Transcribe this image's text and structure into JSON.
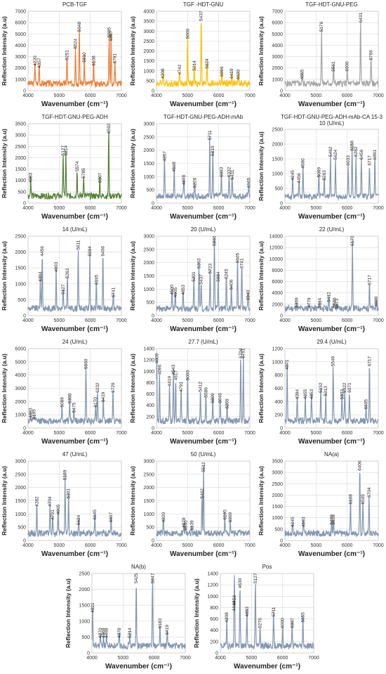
{
  "chart_data": [
    {
      "type": "line",
      "title": "PCB-TGF",
      "color": "#ED7D31",
      "xlim": [
        4000,
        7000
      ],
      "ylim": [
        0,
        7000
      ],
      "ystep": 1000,
      "xtick_step": 1000,
      "xlabel": "Wavenumber (cm⁻¹)",
      "ylabel": "Reflection Intensity (a.u)",
      "peaks": [
        [
          4220,
          2000
        ],
        [
          4357,
          1800
        ],
        [
          5251,
          2500
        ],
        [
          5524,
          3500
        ],
        [
          5648,
          5000
        ],
        [
          5810,
          2300
        ],
        [
          6108,
          2000
        ],
        [
          6605,
          4500
        ],
        [
          6667,
          4200
        ],
        [
          6791,
          2200
        ]
      ],
      "labels": [
        "4220",
        "4357",
        "5251",
        "5524",
        "5648",
        "5810",
        "6108",
        "6605",
        "6667",
        "6791"
      ]
    },
    {
      "type": "line",
      "title": "TGF -HDT-GNU",
      "color": "#FFC000",
      "xlim": [
        4000,
        7000
      ],
      "ylim": [
        0,
        4000
      ],
      "ystep": 500,
      "xtick_step": 1000,
      "xlabel": "Wavenumber (cm⁻¹)",
      "ylabel": "Reflection Intensity (a.u)",
      "peaks": [
        [
          4208,
          500
        ],
        [
          4742,
          700
        ],
        [
          5000,
          2500
        ],
        [
          5214,
          900
        ],
        [
          5437,
          3600
        ],
        [
          5624,
          1000
        ],
        [
          6096,
          600
        ],
        [
          6419,
          500
        ],
        [
          6630,
          450
        ]
      ],
      "labels": [
        "4208",
        "4742",
        "5000",
        "5214",
        "5437",
        "5624",
        "6096",
        "6419",
        "6630"
      ]
    },
    {
      "type": "line",
      "title": "TGF-HDT-GNU-PEG",
      "color": "#A5A5A5",
      "xlim": [
        4000,
        7000
      ],
      "ylim": [
        0,
        7000
      ],
      "ystep": 1000,
      "xtick_step": 1000,
      "xlabel": "Wavenumber (cm⁻¹)",
      "ylabel": "Reflection Intensity (a.u)",
      "peaks": [
        [
          4555,
          800
        ],
        [
          5176,
          5000
        ],
        [
          5561,
          1500
        ],
        [
          6000,
          1500
        ],
        [
          6431,
          5800
        ],
        [
          6766,
          2500
        ]
      ],
      "labels": [
        "4555",
        "5176",
        "5561",
        "6000",
        "6431",
        "6766"
      ]
    },
    {
      "type": "line",
      "title": "TGF-HDT-GNU-PEG-ADH",
      "color": "#548235",
      "xlim": [
        4000,
        7000
      ],
      "ylim": [
        0,
        3500
      ],
      "ystep": 500,
      "xtick_step": 1000,
      "xlabel": "Wavenumber (cm⁻¹)",
      "ylabel": "Reflection Intensity (a.u)",
      "peaks": [
        [
          4083,
          800
        ],
        [
          5127,
          2000
        ],
        [
          5214,
          2000
        ],
        [
          5574,
          1300
        ],
        [
          5785,
          1000
        ],
        [
          6307,
          800
        ],
        [
          6592,
          3000
        ]
      ],
      "labels": [
        "4083",
        "5127",
        "5214",
        "5574",
        "5785",
        "6307",
        "6592"
      ]
    },
    {
      "type": "line",
      "title": "TGF-HDT-GNU-PEG-ADH-mAb",
      "color": "#8497B0",
      "xlim": [
        4000,
        7000
      ],
      "ylim": [
        0,
        3000
      ],
      "ystep": 500,
      "xtick_step": 1000,
      "xlabel": "Wavenumber (cm⁻¹)",
      "ylabel": "Reflection Intensity (a.u)",
      "peaks": [
        [
          4257,
          1500
        ],
        [
          4568,
          1100
        ],
        [
          4878,
          600
        ],
        [
          5226,
          500
        ],
        [
          5711,
          2300
        ],
        [
          5810,
          1700
        ],
        [
          6083,
          900
        ],
        [
          6332,
          900
        ],
        [
          6431,
          800
        ],
        [
          6965,
          500
        ]
      ],
      "labels": [
        "4257",
        "4568",
        "4878",
        "5226",
        "5711",
        "5810",
        "6083",
        "6332",
        "6431",
        "6965"
      ]
    },
    {
      "type": "line",
      "title": "TGF-HDT-GNU-PEG-ADH-mAb-CA 15-3",
      "subtitle": "10 (U/mL)",
      "color": "#8497B0",
      "xlim": [
        4000,
        7000
      ],
      "ylim": [
        0,
        2500
      ],
      "ystep": 500,
      "xtick_step": 1000,
      "xlabel": "Wavenumber (cm⁻¹)",
      "ylabel": "Reflection Intensity (a.u)",
      "peaks": [
        [
          4245,
          700
        ],
        [
          4456,
          600
        ],
        [
          4580,
          1100
        ],
        [
          5089,
          800
        ],
        [
          5263,
          700
        ],
        [
          5462,
          1500
        ],
        [
          5624,
          1400
        ],
        [
          6033,
          1200
        ],
        [
          6158,
          1700
        ],
        [
          6282,
          1500
        ],
        [
          6456,
          1400
        ],
        [
          6717,
          1200
        ],
        [
          6891,
          1400
        ]
      ],
      "labels": [
        "4245",
        "4456",
        "4580",
        "5089",
        "5263",
        "5462",
        "5624",
        "6033",
        "6158",
        "6282",
        "6456",
        "6717",
        "6891"
      ]
    },
    {
      "type": "line",
      "title": "14 (U/mL)",
      "color": "#8497B0",
      "xlim": [
        4000,
        7000
      ],
      "ylim": [
        0,
        2500
      ],
      "ystep": 500,
      "xtick_step": 1000,
      "xlabel": "Wavenumber (cm⁻¹)",
      "ylabel": "Reflection Intensity (a.u)",
      "peaks": [
        [
          4394,
          1000
        ],
        [
          4456,
          1800
        ],
        [
          4903,
          1300
        ],
        [
          5127,
          600
        ],
        [
          5263,
          1100
        ],
        [
          5611,
          2000
        ],
        [
          5984,
          1800
        ],
        [
          6195,
          900
        ],
        [
          6406,
          1800
        ],
        [
          6741,
          500
        ]
      ],
      "labels": [
        "4394",
        "4456",
        "4903",
        "5127",
        "5263",
        "5611",
        "5984",
        "6195",
        "6406",
        "6741"
      ]
    },
    {
      "type": "line",
      "title": "20 (U/mL)",
      "color": "#8497B0",
      "xlim": [
        4000,
        7000
      ],
      "ylim": [
        0,
        3000
      ],
      "ystep": 500,
      "xtick_step": 1000,
      "xlabel": "Wavenumber (cm⁻¹)",
      "ylabel": "Reflection Intensity (a.u)",
      "peaks": [
        [
          4500,
          700
        ],
        [
          4605,
          600
        ],
        [
          4853,
          700
        ],
        [
          5201,
          1200
        ],
        [
          5363,
          1700
        ],
        [
          5437,
          1100
        ],
        [
          5723,
          1500
        ],
        [
          5860,
          2700
        ],
        [
          5984,
          1200
        ],
        [
          6245,
          1300
        ],
        [
          6406,
          900
        ],
        [
          6605,
          1900
        ],
        [
          6741,
          1700
        ],
        [
          6940,
          500
        ]
      ],
      "labels": [
        "4500",
        "4605",
        "4853",
        "5201",
        "5363",
        "5437",
        "5723",
        "5860",
        "5984",
        "6245",
        "6406",
        "6605",
        "6741",
        "6940"
      ]
    },
    {
      "type": "line",
      "title": "22 (U/mL)",
      "color": "#8497B0",
      "xlim": [
        4000,
        7000
      ],
      "ylim": [
        0,
        14000
      ],
      "ystep": 2000,
      "xtick_step": 1000,
      "xlabel": "Wavenumber (cm⁻¹)",
      "ylabel": "Reflection Intensity (a.u)",
      "peaks": [
        [
          4369,
          1000
        ],
        [
          4779,
          1000
        ],
        [
          5114,
          1000
        ],
        [
          5412,
          2000
        ],
        [
          5586,
          1000
        ],
        [
          5673,
          800
        ],
        [
          6170,
          12000
        ],
        [
          6717,
          5000
        ],
        [
          6928,
          1200
        ]
      ],
      "labels": [
        "4369",
        "4779",
        "5114",
        "5412",
        "5586",
        "5673",
        "6170",
        "6717",
        "6928"
      ]
    },
    {
      "type": "line",
      "title": "24 (U/mL)",
      "color": "#8497B0",
      "xlim": [
        4000,
        7000
      ],
      "ylim": [
        0,
        6000
      ],
      "ystep": 1000,
      "xtick_step": 1000,
      "xlabel": "Wavenumber (cm⁻¹)",
      "ylabel": "Reflection Intensity (a.u)",
      "peaks": [
        [
          4083,
          600
        ],
        [
          4195,
          500
        ],
        [
          5089,
          1400
        ],
        [
          5338,
          1700
        ],
        [
          5475,
          1000
        ],
        [
          5860,
          4300
        ],
        [
          6170,
          1400
        ],
        [
          6232,
          2500
        ],
        [
          6419,
          1800
        ],
        [
          6729,
          2500
        ]
      ],
      "labels": [
        "4083",
        "4195",
        "5089",
        "5338",
        "5475",
        "5860",
        "6170",
        "6232",
        "6419",
        "6729"
      ]
    },
    {
      "type": "line",
      "title": "27.7 (U/mL)",
      "color": "#8497B0",
      "xlim": [
        4000,
        7000
      ],
      "ylim": [
        0,
        1400
      ],
      "ystep": 200,
      "xtick_step": 1000,
      "xlabel": "Wavenumber (cm⁻¹)",
      "ylabel": "Reflection Intensity (a.u)",
      "peaks": [
        [
          4009,
          1100
        ],
        [
          4096,
          900
        ],
        [
          4419,
          700
        ],
        [
          4543,
          900
        ],
        [
          4617,
          800
        ],
        [
          4791,
          600
        ],
        [
          5000,
          800
        ],
        [
          5412,
          600
        ],
        [
          5586,
          500
        ],
        [
          5809,
          400
        ],
        [
          6046,
          400
        ],
        [
          6269,
          300
        ],
        [
          6704,
          1200
        ],
        [
          6791,
          1200
        ]
      ],
      "labels": [
        "4009",
        "4096",
        "4419",
        "4543",
        "4617",
        "4791",
        "5000",
        "5412",
        "5586",
        "5809",
        "6046",
        "6269",
        "6704",
        "6791"
      ]
    },
    {
      "type": "line",
      "title": "29.4 (U/mL)",
      "color": "#8497B0",
      "xlim": [
        4000,
        7000
      ],
      "ylim": [
        0,
        1200
      ],
      "ystep": 200,
      "xtick_step": 1000,
      "xlabel": "Wavenumber (cm⁻¹)",
      "ylabel": "Reflection Intensity (a.u)",
      "peaks": [
        [
          4071,
          850
        ],
        [
          4394,
          400
        ],
        [
          4655,
          400
        ],
        [
          4853,
          400
        ],
        [
          5152,
          500
        ],
        [
          5313,
          450
        ],
        [
          5549,
          900
        ],
        [
          5833,
          400
        ],
        [
          5922,
          500
        ],
        [
          6071,
          500
        ],
        [
          6605,
          250
        ],
        [
          6717,
          900
        ]
      ],
      "labels": [
        "4071",
        "4394",
        "4655",
        "4853",
        "5152",
        "5313",
        "5549",
        "5833",
        "5922",
        "6071",
        "6605",
        "6717"
      ]
    },
    {
      "type": "line",
      "title": "47 (U/mL)",
      "color": "#8497B0",
      "xlim": [
        4000,
        7000
      ],
      "ylim": [
        0,
        3000
      ],
      "ystep": 500,
      "xtick_step": 1000,
      "xlabel": "Wavenumber (cm⁻¹)",
      "ylabel": "Reflection Intensity (a.u)",
      "peaks": [
        [
          4282,
          1200
        ],
        [
          4704,
          1200
        ],
        [
          4791,
          700
        ],
        [
          4965,
          900
        ],
        [
          5189,
          2200
        ],
        [
          5301,
          1500
        ],
        [
          5624,
          500
        ],
        [
          6145,
          700
        ],
        [
          6667,
          600
        ]
      ],
      "labels": [
        "4282",
        "4704",
        "4791",
        "4965",
        "5189",
        "5301",
        "5624",
        "6145",
        "6667"
      ]
    },
    {
      "type": "line",
      "title": "50 (U/mL)",
      "color": "#8497B0",
      "xlim": [
        4000,
        7000
      ],
      "ylim": [
        0,
        3000
      ],
      "ystep": 500,
      "xtick_step": 1000,
      "xlabel": "Wavenumber (cm⁻¹)",
      "ylabel": "Reflection Intensity (a.u)",
      "peaks": [
        [
          4220,
          600
        ],
        [
          4878,
          400
        ],
        [
          4940,
          300
        ],
        [
          5139,
          300
        ],
        [
          5462,
          1500
        ],
        [
          5512,
          2500
        ],
        [
          6195,
          700
        ],
        [
          6369,
          600
        ]
      ],
      "labels": [
        "4220",
        "4878",
        "4940",
        "5139",
        "5462",
        "5512",
        "6195",
        "6369"
      ]
    },
    {
      "type": "line",
      "title": "NA(a)",
      "color": "#8497B0",
      "xlim": [
        4000,
        7000
      ],
      "ylim": [
        0,
        3500
      ],
      "ystep": 500,
      "xtick_step": 1000,
      "xlabel": "Wavenumber (cm⁻¹)",
      "ylabel": "Reflection Intensity (a.u)",
      "peaks": [
        [
          4245,
          500
        ],
        [
          4593,
          500
        ],
        [
          5499,
          600
        ],
        [
          5559,
          600
        ],
        [
          6108,
          1500
        ],
        [
          6406,
          3100
        ],
        [
          6505,
          1500
        ],
        [
          6704,
          1800
        ]
      ],
      "labels": [
        "4245",
        "4593",
        "5499",
        "5559",
        "6108",
        "6406",
        "6505",
        "6704"
      ]
    },
    {
      "type": "line",
      "title": "NA(b)",
      "color": "#8497B0",
      "xlim": [
        4000,
        7000
      ],
      "ylim": [
        0,
        2500
      ],
      "ystep": 500,
      "xtick_step": 1000,
      "xlabel": "Wavenumber (cm⁻¹)",
      "ylabel": "Reflection Intensity (a.u)",
      "peaks": [
        [
          4021,
          1200
        ],
        [
          4270,
          400
        ],
        [
          4369,
          400
        ],
        [
          4468,
          400
        ],
        [
          4878,
          400
        ],
        [
          5214,
          400
        ],
        [
          5425,
          2200
        ],
        [
          5947,
          2300
        ],
        [
          6183,
          700
        ],
        [
          6419,
          500
        ]
      ],
      "labels": [
        "4021",
        "4270",
        "4369",
        "4468",
        "4878",
        "5214",
        "5425",
        "5947",
        "6183",
        "6419"
      ]
    },
    {
      "type": "line",
      "title": "Pos",
      "color": "#8497B0",
      "xlim": [
        4000,
        7000
      ],
      "ylim": [
        0,
        1400
      ],
      "ystep": 200,
      "xtick_step": 1000,
      "xlabel": "Wavenumber (cm⁻¹)",
      "ylabel": "Reflection Intensity (a.u)",
      "peaks": [
        [
          4208,
          500
        ],
        [
          4444,
          700
        ],
        [
          4456,
          800
        ],
        [
          4630,
          1100
        ],
        [
          4853,
          600
        ],
        [
          5127,
          1200
        ],
        [
          5276,
          400
        ],
        [
          5711,
          600
        ],
        [
          6000,
          400
        ],
        [
          6307,
          400
        ],
        [
          6655,
          500
        ]
      ],
      "labels": [
        "4208",
        "4444",
        "4456",
        "4630",
        "4853",
        "5127",
        "5276",
        "5711",
        "6000",
        "6307",
        "6655"
      ]
    }
  ]
}
